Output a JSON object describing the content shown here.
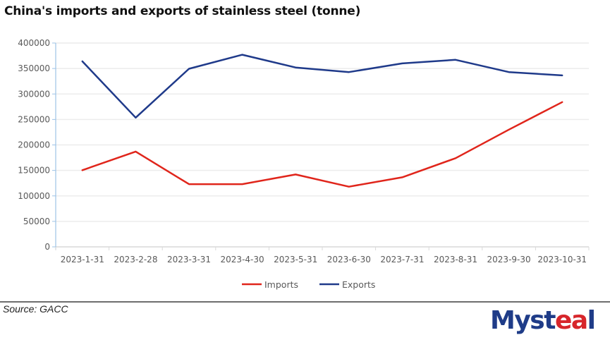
{
  "chart_data": {
    "type": "line",
    "title": "China's imports and exports of stainless steel (tonne)",
    "xlabel": "",
    "ylabel": "",
    "categories": [
      "2023-1-31",
      "2023-2-28",
      "2023-3-31",
      "2023-4-30",
      "2023-5-31",
      "2023-6-30",
      "2023-7-31",
      "2023-8-31",
      "2023-9-30",
      "2023-10-31"
    ],
    "ylim": [
      0,
      400000
    ],
    "yticks": [
      0,
      50000,
      100000,
      150000,
      200000,
      250000,
      300000,
      350000,
      400000
    ],
    "ytick_labels": [
      "0",
      "50000",
      "100000",
      "150000",
      "200000",
      "250000",
      "300000",
      "350000",
      "400000"
    ],
    "grid": true,
    "legend_position": "bottom",
    "series": [
      {
        "name": "Imports",
        "color": "#e0251b",
        "values": [
          150500,
          187000,
          123000,
          123000,
          142000,
          118000,
          136500,
          174000,
          230000,
          284000
        ]
      },
      {
        "name": "Exports",
        "color": "#1f3a8a",
        "values": [
          364000,
          253500,
          349500,
          377000,
          352000,
          343000,
          360000,
          367000,
          343000,
          336500
        ]
      }
    ]
  },
  "footer": {
    "source": "Source: GACC",
    "logo_main": "Myst",
    "logo_accent": "ea",
    "logo_end": "l"
  }
}
